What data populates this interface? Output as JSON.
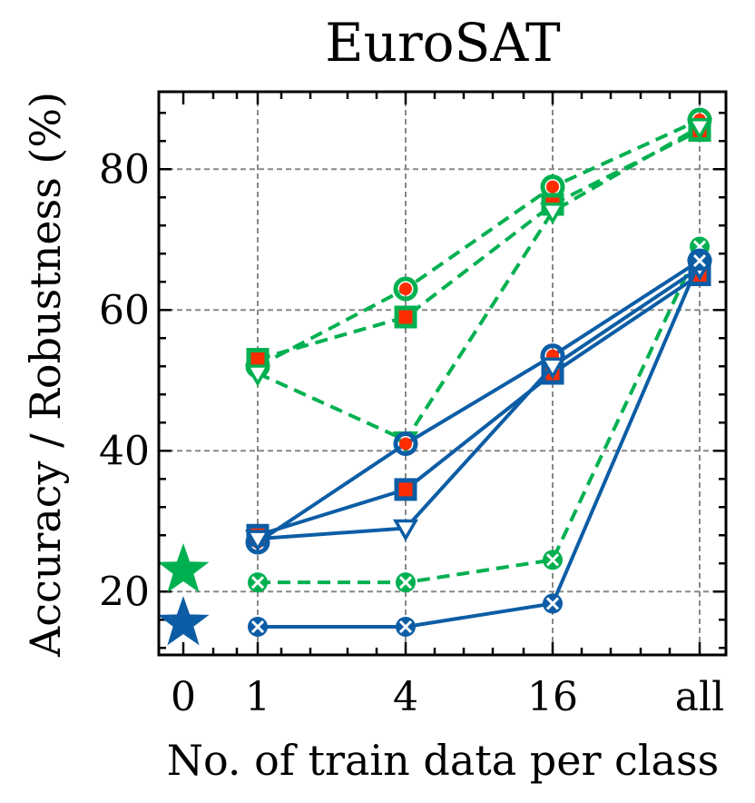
{
  "chart_data": {
    "type": "line",
    "title": "EuroSAT",
    "xlabel": "No. of train data per class",
    "ylabel": "Accuracy / Robustness (%)",
    "categories": [
      "0",
      "1",
      "4",
      "16",
      "all"
    ],
    "yticks": [
      20,
      40,
      60,
      80
    ],
    "ylim": [
      11,
      91
    ],
    "grid": true,
    "zero_shot": [
      {
        "name": "zero-shot (green)",
        "x": "0",
        "y": 23,
        "color": "#00b050"
      },
      {
        "name": "zero-shot (blue)",
        "x": "0",
        "y": 15.5,
        "color": "#0c5da5"
      }
    ],
    "series": [
      {
        "name": "green circle",
        "color": "#00b050",
        "dash": true,
        "marker": "circle",
        "x": [
          "1",
          "4",
          "16",
          "all"
        ],
        "values": [
          52,
          63,
          77.5,
          87
        ]
      },
      {
        "name": "green square",
        "color": "#00b050",
        "dash": true,
        "marker": "square",
        "x": [
          "1",
          "4",
          "16",
          "all"
        ],
        "values": [
          53,
          59,
          75,
          85.5
        ]
      },
      {
        "name": "green triangle",
        "color": "#00b050",
        "dash": true,
        "marker": "triangle",
        "x": [
          "1",
          "4",
          "16",
          "all"
        ],
        "values": [
          51,
          41.5,
          74,
          86
        ]
      },
      {
        "name": "green x",
        "color": "#00b050",
        "dash": true,
        "marker": "x",
        "x": [
          "1",
          "4",
          "16",
          "all"
        ],
        "values": [
          21.3,
          21.3,
          24.5,
          69
        ]
      },
      {
        "name": "blue circle",
        "color": "#0c5da5",
        "dash": false,
        "marker": "circle",
        "x": [
          "1",
          "4",
          "16",
          "all"
        ],
        "values": [
          27,
          41,
          53.5,
          67
        ]
      },
      {
        "name": "blue square",
        "color": "#0c5da5",
        "dash": false,
        "marker": "square",
        "x": [
          "1",
          "4",
          "16",
          "all"
        ],
        "values": [
          28,
          34.5,
          51,
          65
        ]
      },
      {
        "name": "blue triangle",
        "color": "#0c5da5",
        "dash": false,
        "marker": "triangle",
        "x": [
          "1",
          "4",
          "16",
          "all"
        ],
        "values": [
          27.5,
          29,
          52,
          66
        ]
      },
      {
        "name": "blue x",
        "color": "#0c5da5",
        "dash": false,
        "marker": "x",
        "x": [
          "1",
          "4",
          "16",
          "all"
        ],
        "values": [
          15,
          15,
          18.3,
          67
        ]
      }
    ]
  }
}
